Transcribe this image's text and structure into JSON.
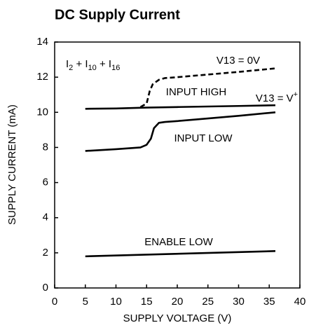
{
  "chart_data": {
    "type": "line",
    "title": "DC Supply Current",
    "x_label": "SUPPLY VOLTAGE (V)",
    "y_label": "SUPPLY CURRENT (mA)",
    "xlim": [
      0,
      40
    ],
    "ylim": [
      0,
      14
    ],
    "xticks": [
      0,
      5,
      10,
      15,
      20,
      25,
      30,
      35,
      40
    ],
    "yticks": [
      0,
      2,
      4,
      6,
      8,
      10,
      12,
      14
    ],
    "grid": false,
    "color": "#000000",
    "series": [
      {
        "name": "INPUT HIGH",
        "style": "solid",
        "x": [
          5,
          10,
          15,
          20,
          25,
          30,
          36
        ],
        "values": [
          10.2,
          10.22,
          10.27,
          10.3,
          10.33,
          10.36,
          10.4
        ]
      },
      {
        "name": "V13 = 0V",
        "style": "dashed",
        "x": [
          14,
          15,
          15.5,
          16,
          17,
          18,
          20,
          25,
          30,
          36
        ],
        "values": [
          10.3,
          10.5,
          11.2,
          11.6,
          11.85,
          11.95,
          12.0,
          12.15,
          12.3,
          12.5
        ]
      },
      {
        "name": "INPUT LOW",
        "style": "solid",
        "x": [
          5,
          10,
          14,
          15,
          15.7,
          16.2,
          17,
          18,
          20,
          25,
          30,
          36
        ],
        "values": [
          7.8,
          7.9,
          8.0,
          8.15,
          8.5,
          9.1,
          9.4,
          9.45,
          9.5,
          9.65,
          9.8,
          10.0
        ]
      },
      {
        "name": "ENABLE LOW",
        "style": "solid",
        "x": [
          5,
          36
        ],
        "values": [
          1.8,
          2.1
        ]
      }
    ],
    "annotations": [
      {
        "parts": [
          "I",
          "2",
          " + I",
          "10",
          " + I",
          "16"
        ]
      },
      {
        "parts": [
          "V13 = V",
          "+"
        ]
      }
    ]
  }
}
